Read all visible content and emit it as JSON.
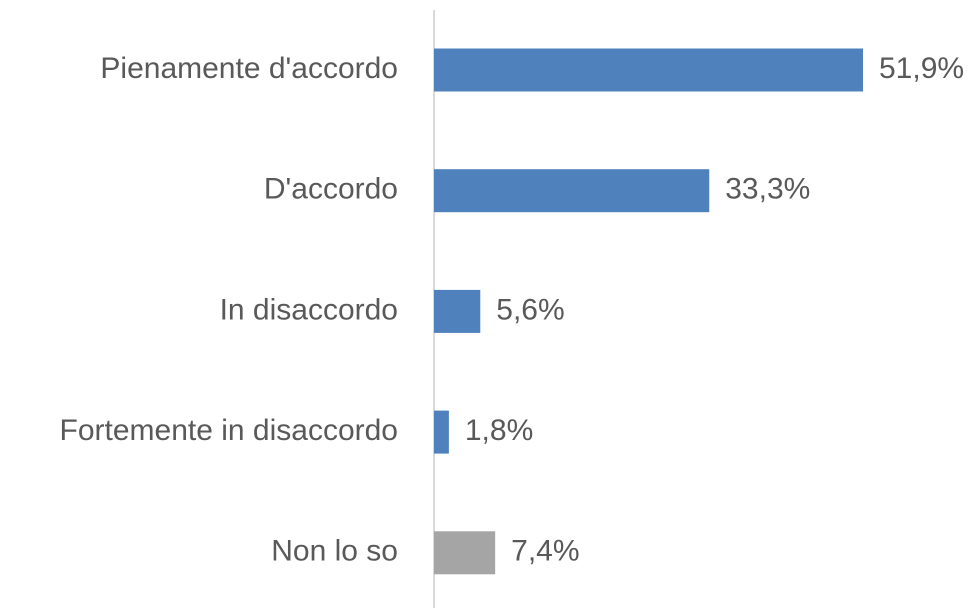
{
  "chart_data": {
    "type": "bar",
    "orientation": "horizontal",
    "categories": [
      "Pienamente d'accordo",
      "D'accordo",
      "In disaccordo",
      "Fortemente in disaccordo",
      "Non lo so"
    ],
    "values": [
      51.9,
      33.3,
      5.6,
      1.8,
      7.4
    ],
    "value_labels": [
      "51,9%",
      "33,3%",
      "5,6%",
      "1,8%",
      "7,4%"
    ],
    "colors": [
      "#4f81bd",
      "#4f81bd",
      "#4f81bd",
      "#4f81bd",
      "#a5a5a5"
    ]
  }
}
